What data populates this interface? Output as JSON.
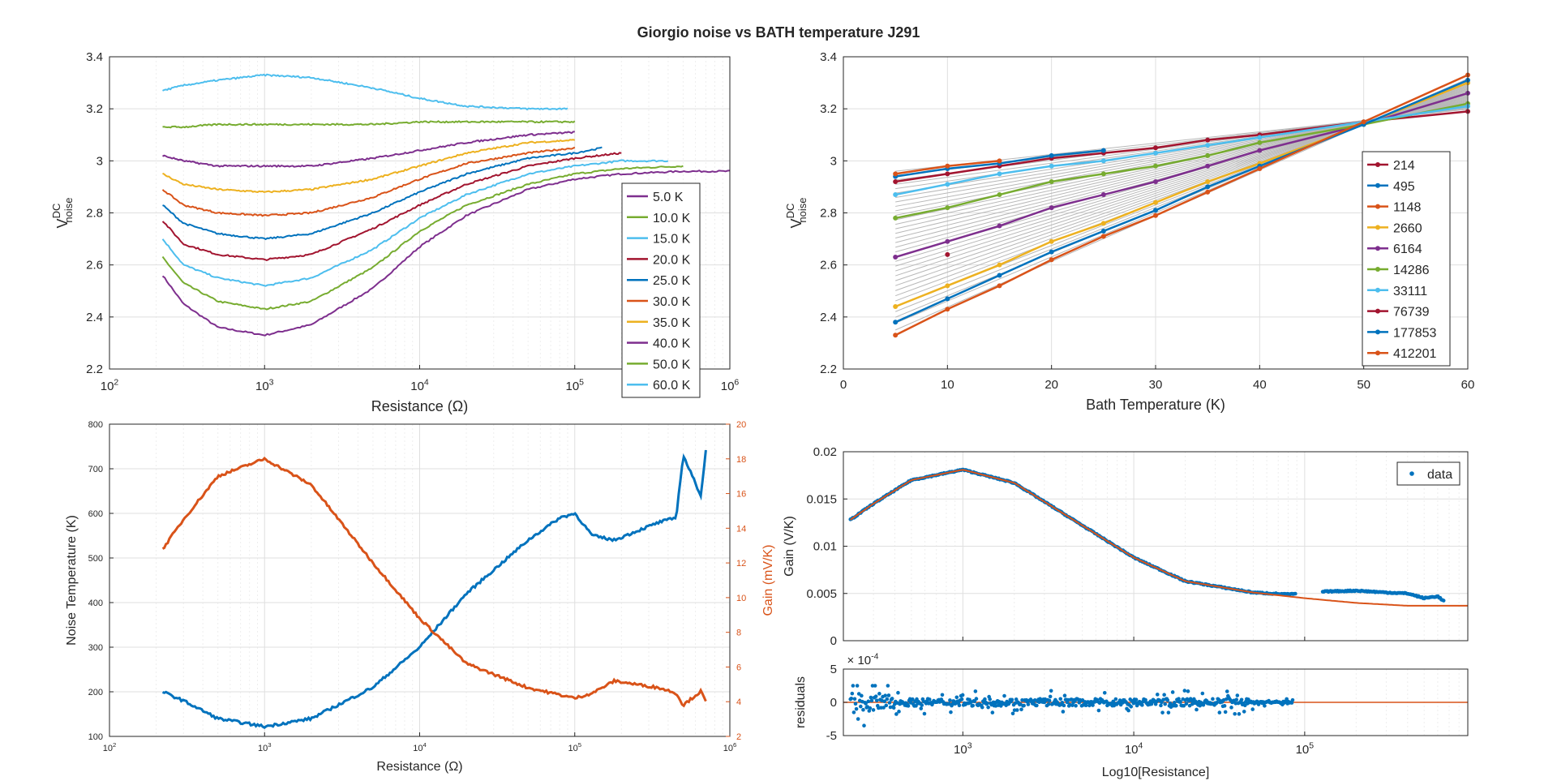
{
  "figure_title": "Giorgio noise vs BATH temperature J291",
  "colors": {
    "c1": "#7E2F8E",
    "c2": "#77AC30",
    "c3": "#4DBEEE",
    "c4": "#A2142F",
    "c5": "#0072BD",
    "c6": "#D95319",
    "c7": "#EDB120",
    "fit": "#D95319"
  },
  "chart_data": [
    {
      "type": "line",
      "panel": "top-left",
      "title": "",
      "xlabel": "Resistance (Ω)",
      "ylabel_main": "V",
      "ylabel_sup": "DC",
      "ylabel_sub": "noise",
      "xscale": "log",
      "xlim": [
        100,
        1000000
      ],
      "ylim": [
        2.2,
        3.4
      ],
      "x_ticks": [
        "10",
        "10",
        "10",
        "10",
        "10"
      ],
      "x_tick_exponents": [
        "2",
        "3",
        "4",
        "5",
        "6"
      ],
      "y_ticks": [
        "2.2",
        "2.4",
        "2.6",
        "2.8",
        "3",
        "3.2",
        "3.4"
      ],
      "legend_position": "lower-right",
      "grid": true,
      "series": [
        {
          "name": "5.0 K",
          "color": "#7E2F8E",
          "x": [
            220,
            300,
            500,
            1000,
            2000,
            5000,
            10000,
            20000,
            50000,
            100000,
            200000,
            500000,
            1000000
          ],
          "y": [
            2.56,
            2.45,
            2.36,
            2.33,
            2.37,
            2.51,
            2.67,
            2.79,
            2.89,
            2.93,
            2.95,
            2.96,
            2.96
          ]
        },
        {
          "name": "10.0 K",
          "color": "#77AC30",
          "x": [
            220,
            300,
            500,
            1000,
            2000,
            5000,
            10000,
            20000,
            50000,
            100000,
            200000,
            500000
          ],
          "y": [
            2.63,
            2.53,
            2.46,
            2.43,
            2.46,
            2.59,
            2.73,
            2.83,
            2.91,
            2.95,
            2.97,
            2.98
          ]
        },
        {
          "name": "15.0 K",
          "color": "#4DBEEE",
          "x": [
            220,
            300,
            500,
            1000,
            2000,
            5000,
            10000,
            20000,
            50000,
            100000,
            200000,
            400000
          ],
          "y": [
            2.7,
            2.6,
            2.55,
            2.52,
            2.55,
            2.66,
            2.78,
            2.87,
            2.95,
            2.98,
            3.0,
            3.0
          ]
        },
        {
          "name": "20.0 K",
          "color": "#A2142F",
          "x": [
            220,
            300,
            500,
            1000,
            2000,
            5000,
            10000,
            20000,
            50000,
            100000,
            200000
          ],
          "y": [
            2.77,
            2.68,
            2.64,
            2.62,
            2.64,
            2.74,
            2.83,
            2.91,
            2.98,
            3.01,
            3.03
          ]
        },
        {
          "name": "25.0 K",
          "color": "#0072BD",
          "x": [
            220,
            300,
            500,
            1000,
            2000,
            5000,
            10000,
            20000,
            50000,
            100000,
            150000
          ],
          "y": [
            2.83,
            2.76,
            2.72,
            2.7,
            2.72,
            2.8,
            2.88,
            2.95,
            3.01,
            3.03,
            3.05
          ]
        },
        {
          "name": "30.0 K",
          "color": "#D95319",
          "x": [
            220,
            300,
            500,
            1000,
            2000,
            5000,
            10000,
            20000,
            50000,
            100000
          ],
          "y": [
            2.89,
            2.83,
            2.8,
            2.79,
            2.8,
            2.86,
            2.93,
            2.99,
            3.03,
            3.05
          ]
        },
        {
          "name": "35.0 K",
          "color": "#EDB120",
          "x": [
            220,
            300,
            500,
            1000,
            2000,
            5000,
            10000,
            20000,
            50000,
            100000
          ],
          "y": [
            2.95,
            2.91,
            2.89,
            2.88,
            2.89,
            2.93,
            2.98,
            3.03,
            3.07,
            3.08
          ]
        },
        {
          "name": "40.0 K",
          "color": "#7E2F8E",
          "x": [
            220,
            300,
            500,
            1000,
            2000,
            5000,
            10000,
            20000,
            50000,
            100000
          ],
          "y": [
            3.02,
            3.0,
            2.98,
            2.98,
            2.98,
            3.01,
            3.04,
            3.07,
            3.1,
            3.11
          ]
        },
        {
          "name": "50.0 K",
          "color": "#77AC30",
          "x": [
            220,
            300,
            500,
            1000,
            2000,
            5000,
            10000,
            20000,
            50000,
            100000
          ],
          "y": [
            3.13,
            3.13,
            3.14,
            3.14,
            3.14,
            3.14,
            3.15,
            3.15,
            3.15,
            3.15
          ]
        },
        {
          "name": "60.0 K",
          "color": "#4DBEEE",
          "x": [
            220,
            300,
            500,
            1000,
            2000,
            5000,
            10000,
            20000,
            50000,
            90000
          ],
          "y": [
            3.27,
            3.29,
            3.31,
            3.33,
            3.32,
            3.28,
            3.24,
            3.21,
            3.2,
            3.2
          ]
        }
      ]
    },
    {
      "type": "line",
      "panel": "top-right",
      "title": "",
      "xlabel": "Bath Temperature (K)",
      "ylabel_main": "V",
      "ylabel_sup": "DC",
      "ylabel_sub": "noise",
      "xlim": [
        0,
        60
      ],
      "ylim": [
        2.2,
        3.4
      ],
      "x_ticks": [
        "0",
        "10",
        "20",
        "30",
        "40",
        "50",
        "60"
      ],
      "y_ticks": [
        "2.2",
        "2.4",
        "2.6",
        "2.8",
        "3",
        "3.2",
        "3.4"
      ],
      "legend_position": "right",
      "grid": true,
      "series": [
        {
          "name": "214",
          "color": "#A2142F",
          "x": [
            5,
            10,
            15,
            20,
            25,
            30,
            35,
            40,
            50,
            60
          ],
          "y": [
            2.92,
            2.95,
            2.98,
            3.01,
            3.03,
            3.05,
            3.08,
            3.1,
            3.15,
            3.19
          ]
        },
        {
          "name": "495",
          "color": "#0072BD",
          "x": [
            5,
            10,
            15,
            20,
            25
          ],
          "y": [
            2.94,
            2.97,
            2.99,
            3.02,
            3.04
          ]
        },
        {
          "name": "1148",
          "color": "#D95319",
          "x": [
            5,
            10,
            15
          ],
          "y": [
            2.95,
            2.98,
            3.0
          ]
        },
        {
          "name": "2660",
          "color": "#EDB120",
          "x": [
            5,
            10,
            15,
            20,
            25,
            30,
            35,
            40,
            50,
            60
          ],
          "y": [
            2.44,
            2.52,
            2.6,
            2.69,
            2.76,
            2.84,
            2.92,
            2.99,
            3.14,
            3.3
          ]
        },
        {
          "name": "6164",
          "color": "#7E2F8E",
          "x": [
            5,
            10,
            15,
            20,
            25,
            30,
            35,
            40,
            50,
            60
          ],
          "y": [
            2.63,
            2.69,
            2.75,
            2.82,
            2.87,
            2.92,
            2.98,
            3.04,
            3.14,
            3.26
          ]
        },
        {
          "name": "14286",
          "color": "#77AC30",
          "x": [
            5,
            10,
            15,
            20,
            25,
            30,
            35,
            40,
            50,
            60
          ],
          "y": [
            2.78,
            2.82,
            2.87,
            2.92,
            2.95,
            2.98,
            3.02,
            3.07,
            3.14,
            3.22
          ]
        },
        {
          "name": "33111",
          "color": "#4DBEEE",
          "x": [
            5,
            10,
            15,
            20,
            25,
            30,
            35,
            40,
            50,
            60
          ],
          "y": [
            2.87,
            2.91,
            2.95,
            2.98,
            3.0,
            3.03,
            3.06,
            3.09,
            3.15,
            3.21
          ]
        },
        {
          "name": "76739",
          "color": "#A2142F",
          "x": [
            10
          ],
          "y": [
            2.64
          ]
        },
        {
          "name": "177853",
          "color": "#0072BD",
          "x": [
            5,
            10,
            15,
            20,
            25,
            30,
            35,
            40,
            50,
            60
          ],
          "y": [
            2.38,
            2.47,
            2.56,
            2.65,
            2.73,
            2.81,
            2.9,
            2.98,
            3.14,
            3.31
          ]
        },
        {
          "name": "412201",
          "color": "#D95319",
          "x": [
            5,
            10,
            15,
            20,
            25,
            30,
            35,
            40,
            50,
            60
          ],
          "y": [
            2.33,
            2.43,
            2.52,
            2.62,
            2.71,
            2.79,
            2.88,
            2.97,
            3.15,
            3.33
          ]
        }
      ]
    },
    {
      "type": "line",
      "panel": "bottom-left",
      "title": "",
      "xlabel": "Resistance (Ω)",
      "ylabel_left": "Noise Temperature (K)",
      "ylabel_right": "Gain (mV/K)",
      "xscale": "log",
      "xlim": [
        100,
        1000000
      ],
      "ylim_left": [
        100,
        800
      ],
      "ylim_right": [
        2,
        20
      ],
      "x_ticks": [
        "10",
        "10",
        "10",
        "10",
        "10"
      ],
      "x_tick_exponents": [
        "2",
        "3",
        "4",
        "5",
        "6"
      ],
      "y_ticks_left": [
        "100",
        "200",
        "300",
        "400",
        "500",
        "600",
        "700",
        "800"
      ],
      "y_ticks_right": [
        "2",
        "4",
        "6",
        "8",
        "10",
        "12",
        "14",
        "16",
        "18",
        "20"
      ],
      "grid": true,
      "series": [
        {
          "axis": "left",
          "color": "#0072BD",
          "x": [
            220,
            300,
            500,
            1000,
            2000,
            5000,
            10000,
            20000,
            50000,
            80000,
            100000,
            130000,
            180000,
            250000,
            350000,
            450000,
            500000,
            650000,
            700000
          ],
          "y": [
            200,
            180,
            140,
            122,
            140,
            210,
            300,
            420,
            540,
            590,
            600,
            550,
            540,
            560,
            580,
            590,
            730,
            640,
            740
          ]
        },
        {
          "axis": "right",
          "color": "#D95319",
          "x": [
            220,
            300,
            500,
            1000,
            2000,
            5000,
            10000,
            20000,
            50000,
            80000,
            100000,
            130000,
            180000,
            250000,
            350000,
            450000,
            500000,
            650000,
            700000
          ],
          "y": [
            12.8,
            14.5,
            17.0,
            18.0,
            16.5,
            12.0,
            8.8,
            6.2,
            4.8,
            4.4,
            4.2,
            4.5,
            5.2,
            5.0,
            4.8,
            4.5,
            3.8,
            4.6,
            4.0
          ]
        }
      ]
    },
    {
      "type": "scatter",
      "panel": "bottom-right-main",
      "title": "",
      "xlabel": "",
      "ylabel": "Gain (V/K)",
      "xscale": "log",
      "xlim": [
        200,
        900000
      ],
      "ylim": [
        0,
        0.02
      ],
      "y_ticks": [
        "0",
        "0.005",
        "0.01",
        "0.015",
        "0.02"
      ],
      "legend_position": "top-right",
      "grid": true,
      "series": [
        {
          "name": "data",
          "color": "#0072BD",
          "x": [
            220,
            300,
            500,
            1000,
            2000,
            5000,
            10000,
            20000,
            50000,
            80000,
            100000,
            130000,
            200000,
            300000,
            400000,
            500000,
            600000,
            650000
          ],
          "y": [
            0.0128,
            0.0145,
            0.017,
            0.0181,
            0.0167,
            0.0122,
            0.0088,
            0.0063,
            0.0051,
            0.0049,
            0.005,
            0.0052,
            0.0053,
            0.0051,
            0.005,
            0.0045,
            0.0047,
            0.0042
          ]
        },
        {
          "name": "fit",
          "color": "#D95319",
          "x": [
            220,
            300,
            500,
            1000,
            2000,
            5000,
            10000,
            20000,
            50000,
            100000,
            200000,
            400000,
            700000,
            900000
          ],
          "y": [
            0.0128,
            0.0145,
            0.017,
            0.0181,
            0.0167,
            0.0122,
            0.0088,
            0.0063,
            0.0051,
            0.0045,
            0.004,
            0.0037,
            0.0037,
            0.0037
          ]
        }
      ]
    },
    {
      "type": "scatter",
      "panel": "bottom-right-residuals",
      "title": "",
      "xlabel": "Log10[Resistance]",
      "ylabel": "residuals",
      "multiplier_base": "× 10",
      "multiplier_exp": "-4",
      "xscale": "log",
      "xlim": [
        200,
        900000
      ],
      "ylim": [
        -5,
        5
      ],
      "x_ticks": [
        "10",
        "10",
        "10"
      ],
      "x_tick_exponents": [
        "3",
        "4",
        "5"
      ],
      "y_ticks": [
        "-5",
        "0",
        "5"
      ],
      "grid": true,
      "series": [
        {
          "name": "residuals",
          "color": "#0072BD",
          "x_range": [
            220,
            85000
          ],
          "y_spread": [
            -3.5,
            2.5
          ]
        },
        {
          "name": "zero line",
          "color": "#D95319",
          "x": [
            200,
            900000
          ],
          "y": [
            0,
            0
          ]
        }
      ]
    }
  ]
}
